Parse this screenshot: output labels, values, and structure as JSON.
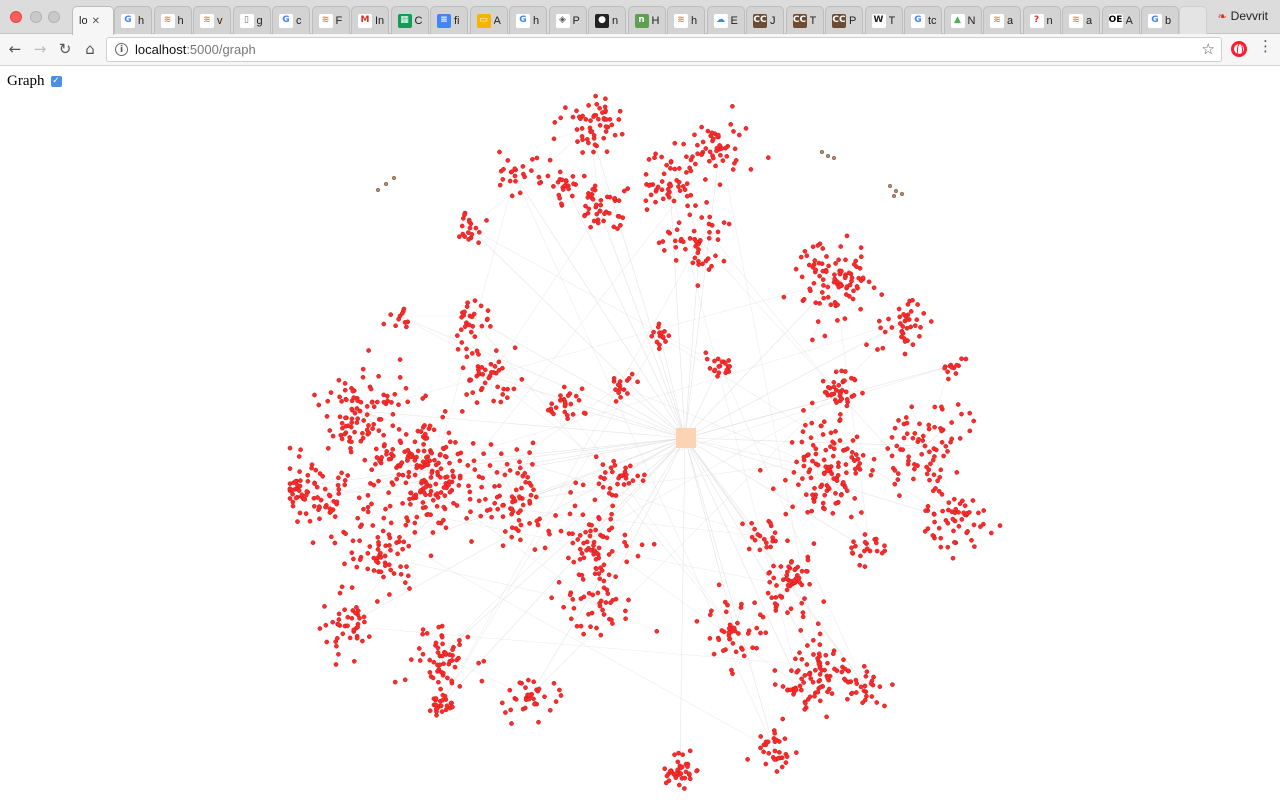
{
  "browser": {
    "tabs": [
      {
        "title": "lo",
        "fav": "page-icon",
        "active": true
      },
      {
        "title": "h",
        "fav": "google-icon"
      },
      {
        "title": "h",
        "fav": "stackoverflow-icon"
      },
      {
        "title": "v",
        "fav": "stackoverflow-icon"
      },
      {
        "title": "g",
        "fav": "document-icon"
      },
      {
        "title": "c",
        "fav": "google-icon"
      },
      {
        "title": "F",
        "fav": "stackoverflow-icon"
      },
      {
        "title": "In",
        "fav": "gmail-icon"
      },
      {
        "title": "C",
        "fav": "sheets-icon"
      },
      {
        "title": "fi",
        "fav": "docs-icon"
      },
      {
        "title": "A",
        "fav": "slides-icon"
      },
      {
        "title": "h",
        "fav": "google-icon"
      },
      {
        "title": "P",
        "fav": "diamond-icon"
      },
      {
        "title": "n",
        "fav": "github-icon"
      },
      {
        "title": "H",
        "fav": "nodejs-icon"
      },
      {
        "title": "h",
        "fav": "stackoverflow-icon"
      },
      {
        "title": "E",
        "fav": "cloud-icon"
      },
      {
        "title": "J",
        "fav": "cc-icon"
      },
      {
        "title": "T",
        "fav": "cc-icon"
      },
      {
        "title": "P",
        "fav": "cc-icon"
      },
      {
        "title": "T",
        "fav": "wikipedia-icon"
      },
      {
        "title": "tc",
        "fav": "google-icon"
      },
      {
        "title": "N",
        "fav": "triangle-icon"
      },
      {
        "title": "a",
        "fav": "stackoverflow-icon"
      },
      {
        "title": "n",
        "fav": "question-icon"
      },
      {
        "title": "a",
        "fav": "stackoverflow-icon"
      },
      {
        "title": "A",
        "fav": "oeis-icon"
      },
      {
        "title": "b",
        "fav": "google-icon"
      }
    ],
    "profile_name": "Devvrit",
    "url_host": "localhost",
    "url_path": ":5000/graph",
    "colors": {
      "node": "#ff2b2b",
      "node_stroke": "#c41a1a",
      "edge": "#d8d8d8",
      "selected_box": "#fcd4b4",
      "checkbox": "#4a90e2"
    }
  },
  "page": {
    "graph_label": "Graph",
    "graph_checked": true
  }
}
